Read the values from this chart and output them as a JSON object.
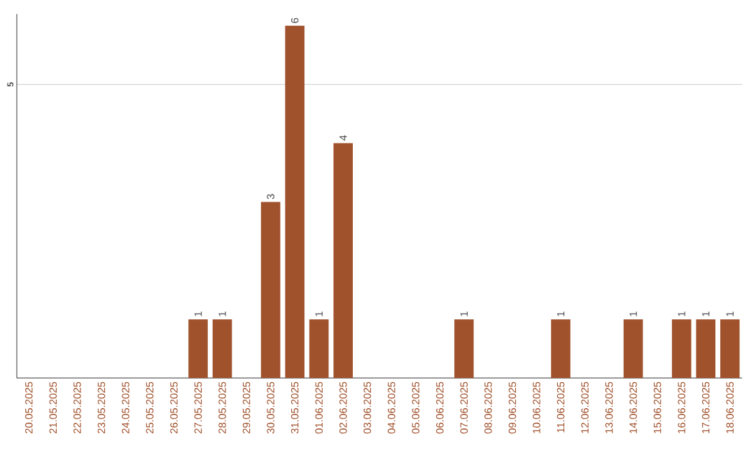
{
  "chart_data": {
    "type": "bar",
    "categories": [
      "20.05.2025",
      "21.05.2025",
      "22.05.2025",
      "23.05.2025",
      "24.05.2025",
      "25.05.2025",
      "26.05.2025",
      "27.05.2025",
      "28.05.2025",
      "29.05.2025",
      "30.05.2025",
      "31.05.2025",
      "01.06.2025",
      "02.06.2025",
      "03.06.2025",
      "04.06.2025",
      "05.06.2025",
      "06.06.2025",
      "07.06.2025",
      "08.06.2025",
      "09.06.2025",
      "10.06.2025",
      "11.06.2025",
      "12.06.2025",
      "13.06.2025",
      "14.06.2025",
      "15.06.2025",
      "16.06.2025",
      "17.06.2025",
      "18.06.2025"
    ],
    "values": [
      0,
      0,
      0,
      0,
      0,
      0,
      0,
      1,
      1,
      0,
      3,
      6,
      1,
      4,
      0,
      0,
      0,
      0,
      1,
      0,
      0,
      0,
      1,
      0,
      0,
      1,
      0,
      1,
      1,
      1
    ],
    "value_labels": [
      null,
      null,
      null,
      null,
      null,
      null,
      null,
      "1",
      "1",
      null,
      "3",
      "6",
      "1",
      "4",
      null,
      null,
      null,
      null,
      "1",
      null,
      null,
      null,
      "1",
      null,
      null,
      "1",
      null,
      "1",
      "1",
      "1"
    ],
    "color": "#a0522d",
    "ylim": [
      0,
      6.2
    ],
    "yticks": [
      5
    ],
    "grid": "y"
  }
}
